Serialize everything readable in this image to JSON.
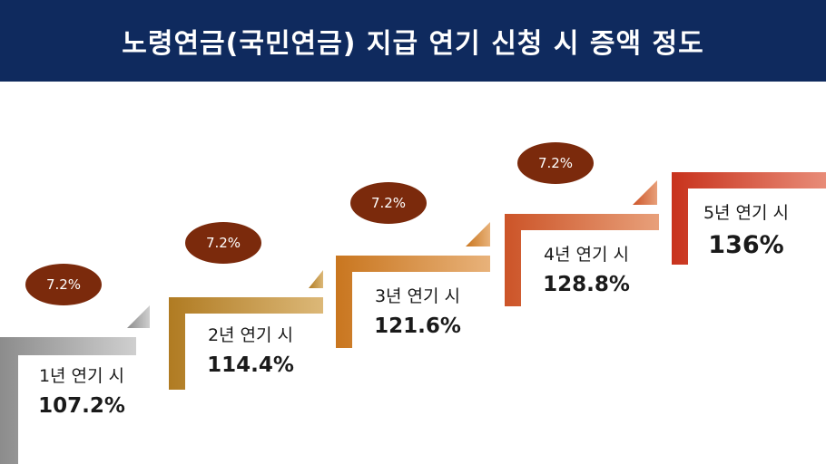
{
  "title": "노령연금(국민연금) 지급 연기 신청 시 증액 정도",
  "steps": [
    {
      "year_label": "1년 연기 시",
      "value": "107.2%",
      "increase": "7.2%"
    },
    {
      "year_label": "2년 연기 시",
      "value": "114.4%",
      "increase": "7.2%"
    },
    {
      "year_label": "3년 연기 시",
      "value": "121.6%",
      "increase": "7.2%"
    },
    {
      "year_label": "4년 연기 시",
      "value": "128.8%",
      "increase": "7.2%"
    },
    {
      "year_label": "5년 연기 시",
      "value": "136%"
    }
  ],
  "colors": {
    "header_bg": "#0f2a5e",
    "badge_bg": "#7b2a0c",
    "step_1": "#a6a6a6",
    "step_2": "#c08a2e",
    "step_3": "#d4862e",
    "step_4": "#d2603a",
    "step_5": "#c23a2a"
  }
}
